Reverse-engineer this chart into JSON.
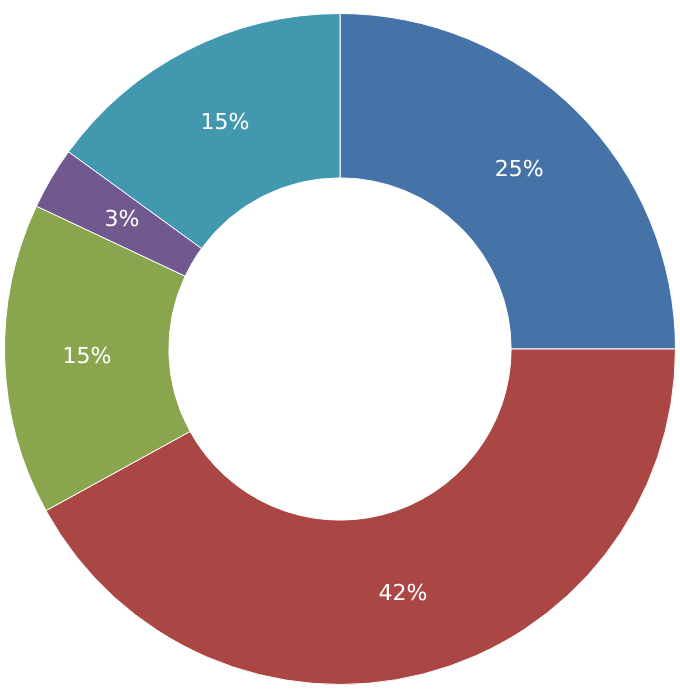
{
  "chart_data": {
    "type": "donut",
    "categories": [
      null,
      null,
      null,
      null,
      null
    ],
    "values": [
      25,
      42,
      15,
      3,
      15
    ],
    "colors": [
      "#4572a7",
      "#aa4643",
      "#89a54e",
      "#71588f",
      "#4198af"
    ],
    "value_labels": [
      "25%",
      "42%",
      "15%",
      "3%",
      "15%"
    ]
  }
}
